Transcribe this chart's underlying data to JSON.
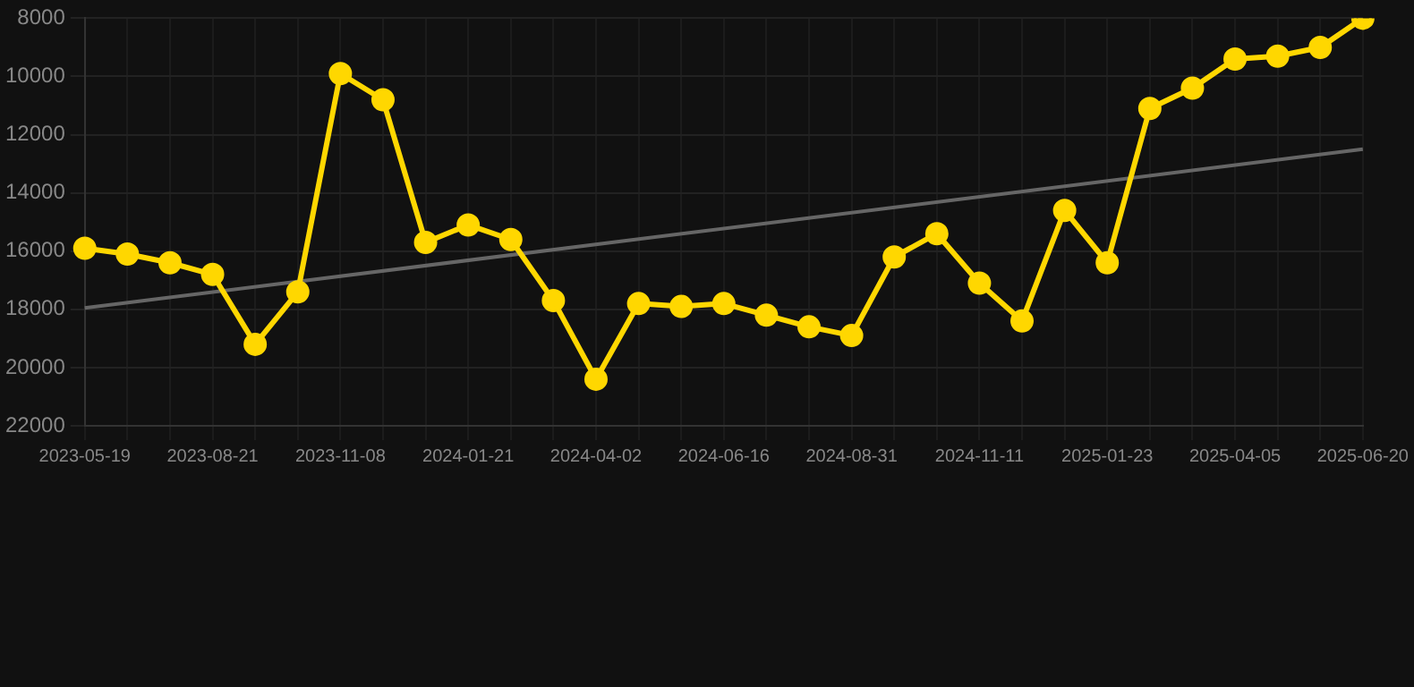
{
  "chart_data": {
    "type": "line",
    "categories": [
      "2023-05-19",
      null,
      null,
      "2023-08-21",
      null,
      null,
      "2023-11-08",
      null,
      null,
      "2024-01-21",
      null,
      null,
      "2024-04-02",
      null,
      null,
      "2024-06-16",
      null,
      null,
      "2024-08-31",
      null,
      null,
      "2024-11-11",
      null,
      null,
      "2025-01-23",
      null,
      null,
      "2025-04-05",
      null,
      null,
      "2025-06-20"
    ],
    "series": [
      {
        "color": "#ffd700",
        "marker": "circle",
        "values": [
          15900,
          16100,
          16400,
          16800,
          19200,
          17400,
          9900,
          10800,
          15700,
          15100,
          15600,
          17700,
          20400,
          17800,
          17900,
          17800,
          18200,
          18600,
          18900,
          16200,
          15400,
          17100,
          18400,
          14600,
          16400,
          11100,
          10400,
          9400,
          9300,
          9000,
          8000
        ]
      },
      {
        "color": "#666666",
        "marker": "none",
        "values": [
          17950,
          null,
          null,
          null,
          null,
          null,
          null,
          null,
          null,
          null,
          null,
          null,
          null,
          null,
          null,
          null,
          null,
          null,
          null,
          null,
          null,
          null,
          null,
          null,
          null,
          null,
          null,
          null,
          null,
          null,
          12500
        ]
      }
    ],
    "ylim": [
      22000,
      8000
    ],
    "yticks": [
      8000,
      10000,
      12000,
      14000,
      16000,
      18000,
      20000,
      22000
    ],
    "grid": true,
    "legend": false
  }
}
